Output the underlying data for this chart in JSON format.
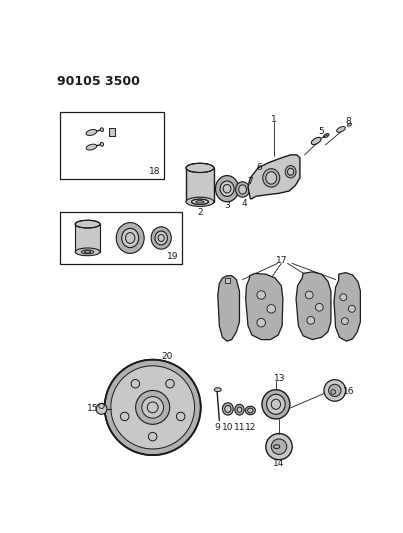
{
  "title": "90105 3500",
  "bg_color": "#ffffff",
  "line_color": "#1a1a1a",
  "figsize": [
    4.03,
    5.33
  ],
  "dpi": 100,
  "title_fontsize": 9,
  "title_fontweight": "bold",
  "label_fontsize": 6.5,
  "gray_fill": "#c8c8c8",
  "dark_gray": "#999999",
  "mid_gray": "#b0b0b0"
}
